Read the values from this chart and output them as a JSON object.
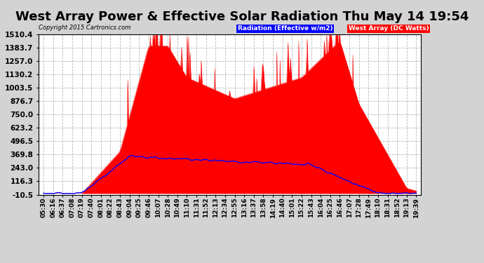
{
  "title": "West Array Power & Effective Solar Radiation Thu May 14 19:54",
  "copyright": "Copyright 2015 Cartronics.com",
  "legend_radiation": "Radiation (Effective w/m2)",
  "legend_west": "West Array (DC Watts)",
  "yticks": [
    1510.4,
    1383.7,
    1257.0,
    1130.2,
    1003.5,
    876.7,
    750.0,
    623.2,
    496.5,
    369.8,
    243.0,
    116.3,
    -10.5
  ],
  "ymin": -10.5,
  "ymax": 1510.4,
  "bg_color": "#d3d3d3",
  "plot_bg_color": "#ffffff",
  "grid_color": "#b0b0b0",
  "red_color": "#ff0000",
  "blue_color": "#0000ff",
  "title_fontsize": 13,
  "xlabel_fontsize": 6.5,
  "ylabel_fontsize": 7.5,
  "xtick_labels": [
    "05:30",
    "06:16",
    "06:37",
    "07:08",
    "07:19",
    "07:40",
    "08:01",
    "08:22",
    "08:43",
    "09:04",
    "09:25",
    "09:46",
    "10:07",
    "10:28",
    "10:49",
    "11:10",
    "11:31",
    "11:52",
    "12:13",
    "12:34",
    "12:55",
    "13:16",
    "13:37",
    "13:58",
    "14:19",
    "14:40",
    "15:01",
    "15:22",
    "15:43",
    "16:04",
    "16:25",
    "16:46",
    "17:07",
    "17:28",
    "17:49",
    "18:10",
    "18:31",
    "18:52",
    "19:13",
    "19:39"
  ]
}
